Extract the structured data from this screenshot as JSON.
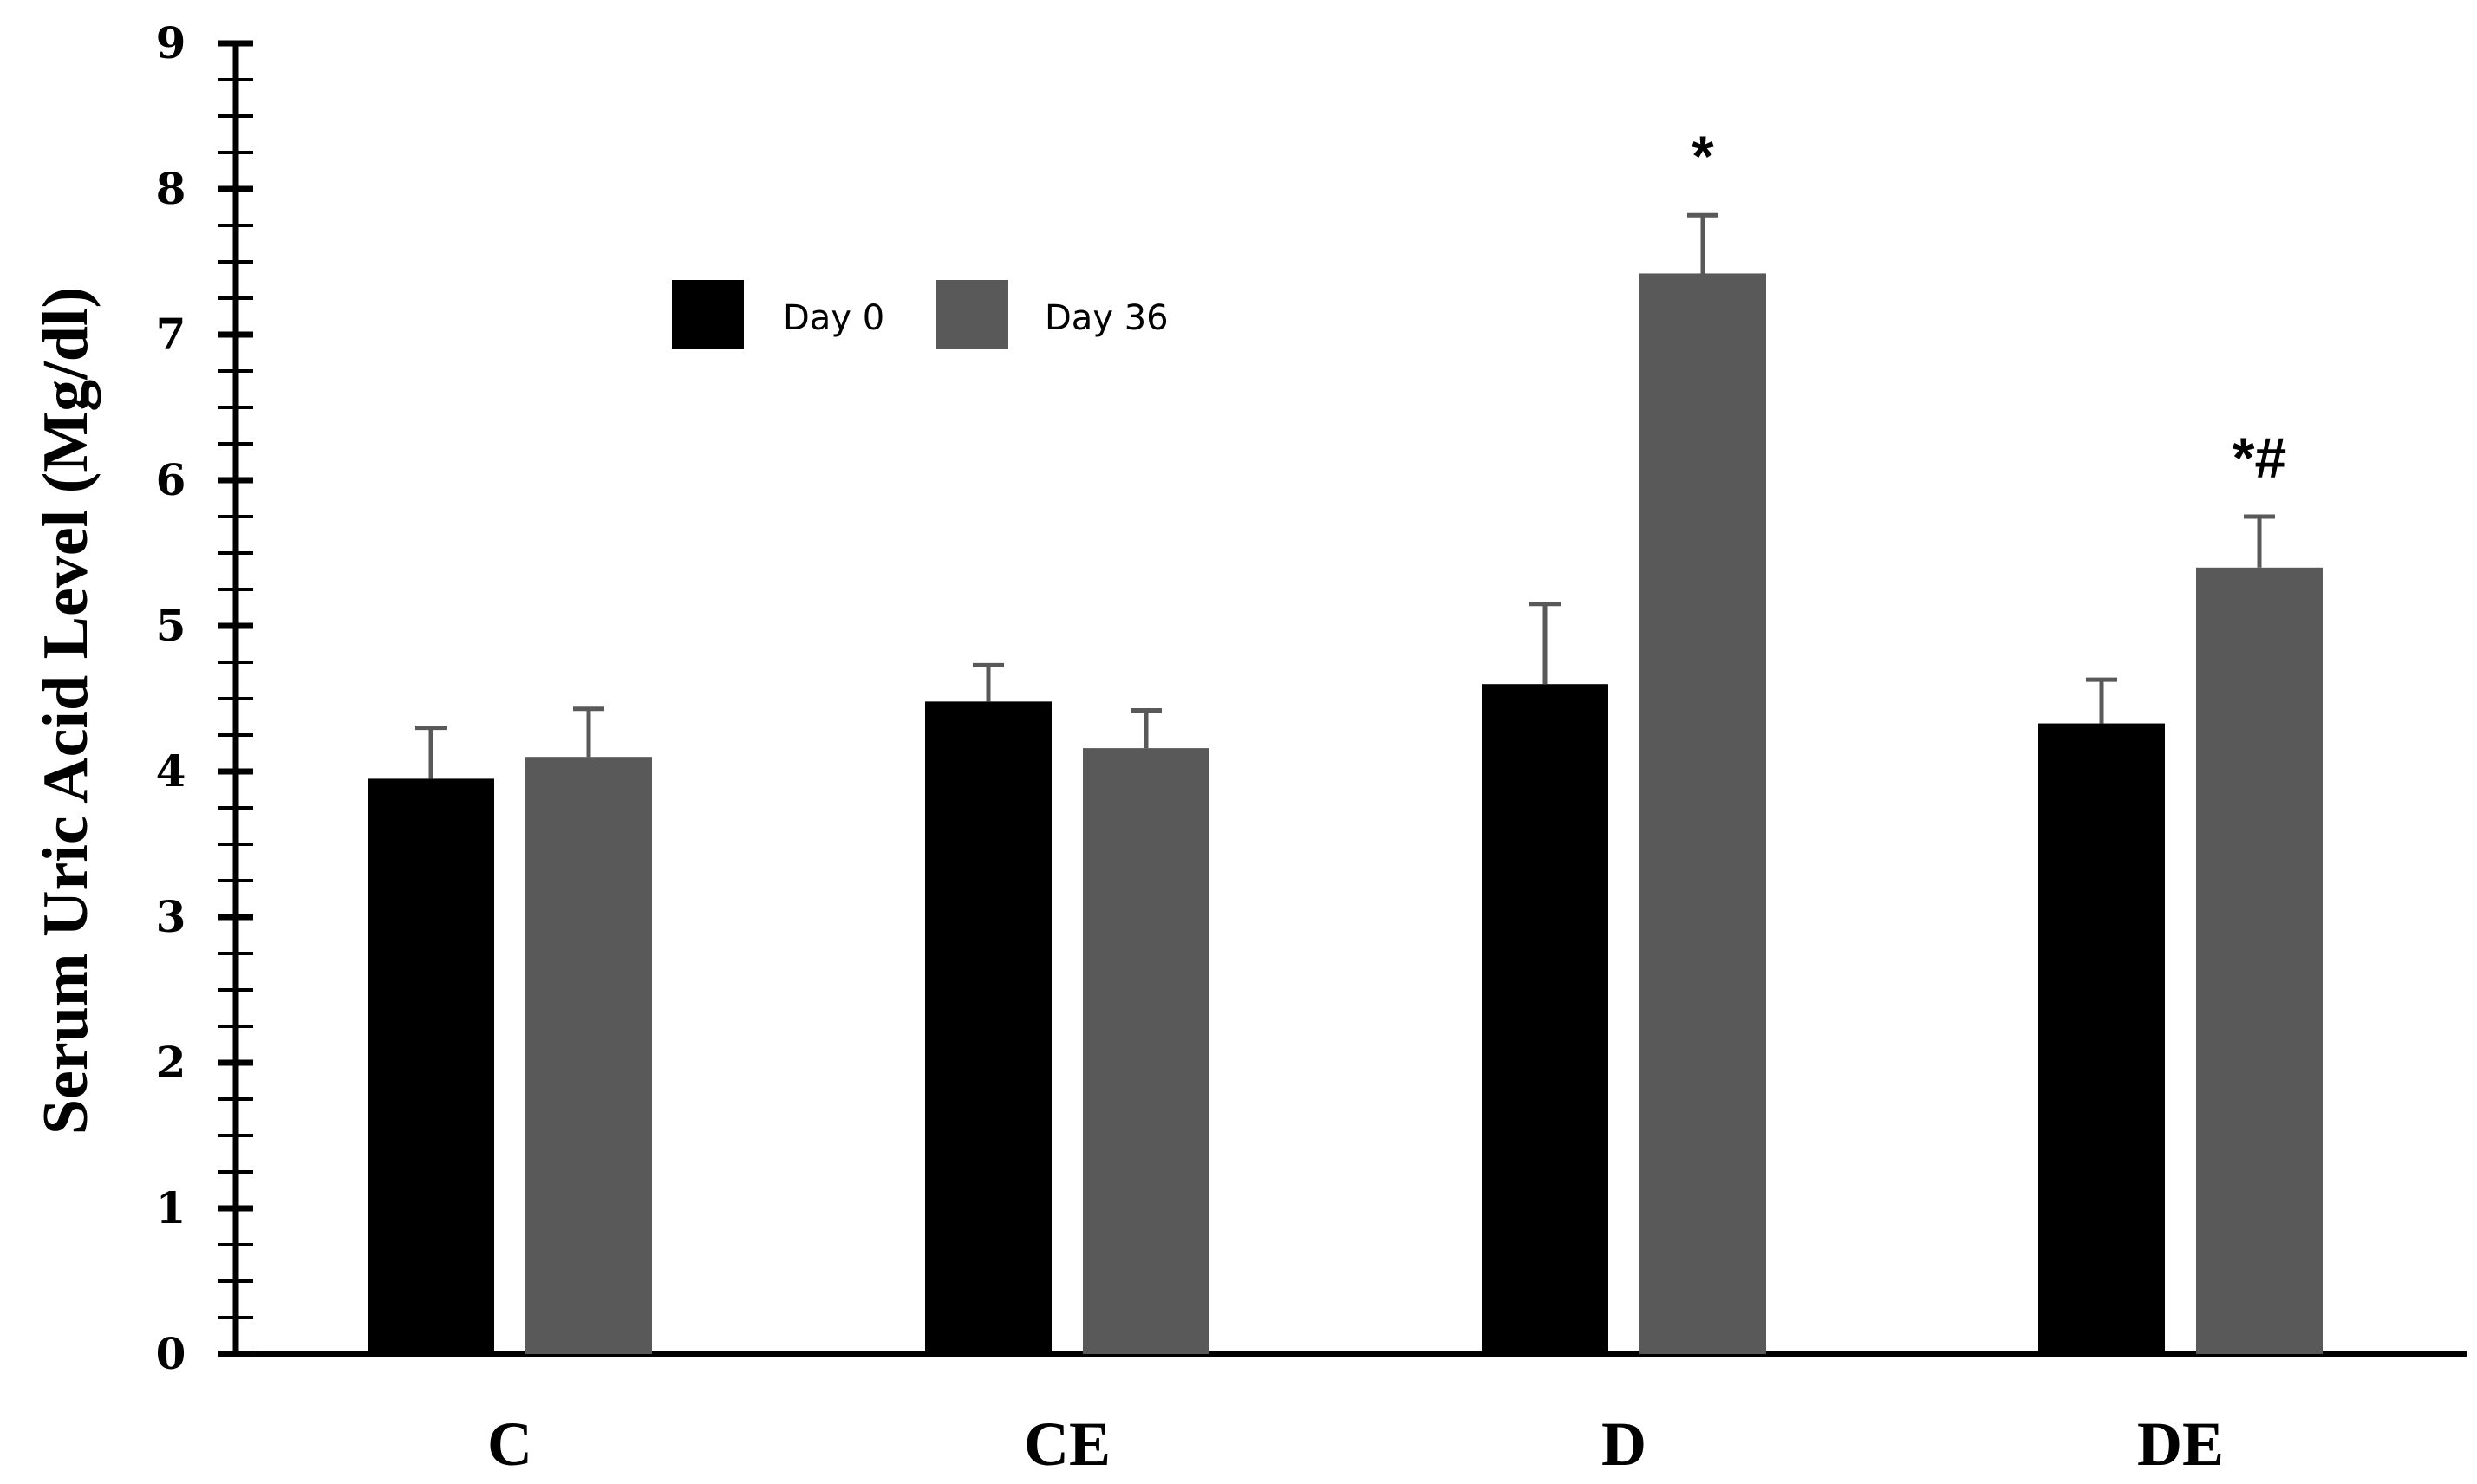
{
  "chart_data": {
    "type": "bar",
    "title": "",
    "xlabel": "",
    "ylabel": "Serum Uric Acid Level (Mg/dl)",
    "ylim": [
      0,
      9
    ],
    "yticks": [
      "0",
      "1",
      "2",
      "3",
      "4",
      "5",
      "6",
      "7",
      "8",
      "9"
    ],
    "minor_ticks_per_unit": 4,
    "categories": [
      "C",
      "CE",
      "D",
      "DE"
    ],
    "series": [
      {
        "name": "Day 0",
        "color": "#000000",
        "values": [
          3.95,
          4.48,
          4.6,
          4.33
        ],
        "errors": [
          0.35,
          0.25,
          0.55,
          0.3
        ]
      },
      {
        "name": "Day 36",
        "color": "#595959",
        "values": [
          4.1,
          4.16,
          7.42,
          5.4
        ],
        "errors": [
          0.33,
          0.26,
          0.4,
          0.35
        ]
      }
    ],
    "legend": {
      "placement": "top-left",
      "entries": [
        "Day 0",
        "Day 36"
      ]
    },
    "annotations": [
      {
        "category": "D",
        "series": "Day 36",
        "text": "*"
      },
      {
        "category": "DE",
        "series": "Day 36",
        "text": "*#"
      }
    ],
    "grid": false
  }
}
